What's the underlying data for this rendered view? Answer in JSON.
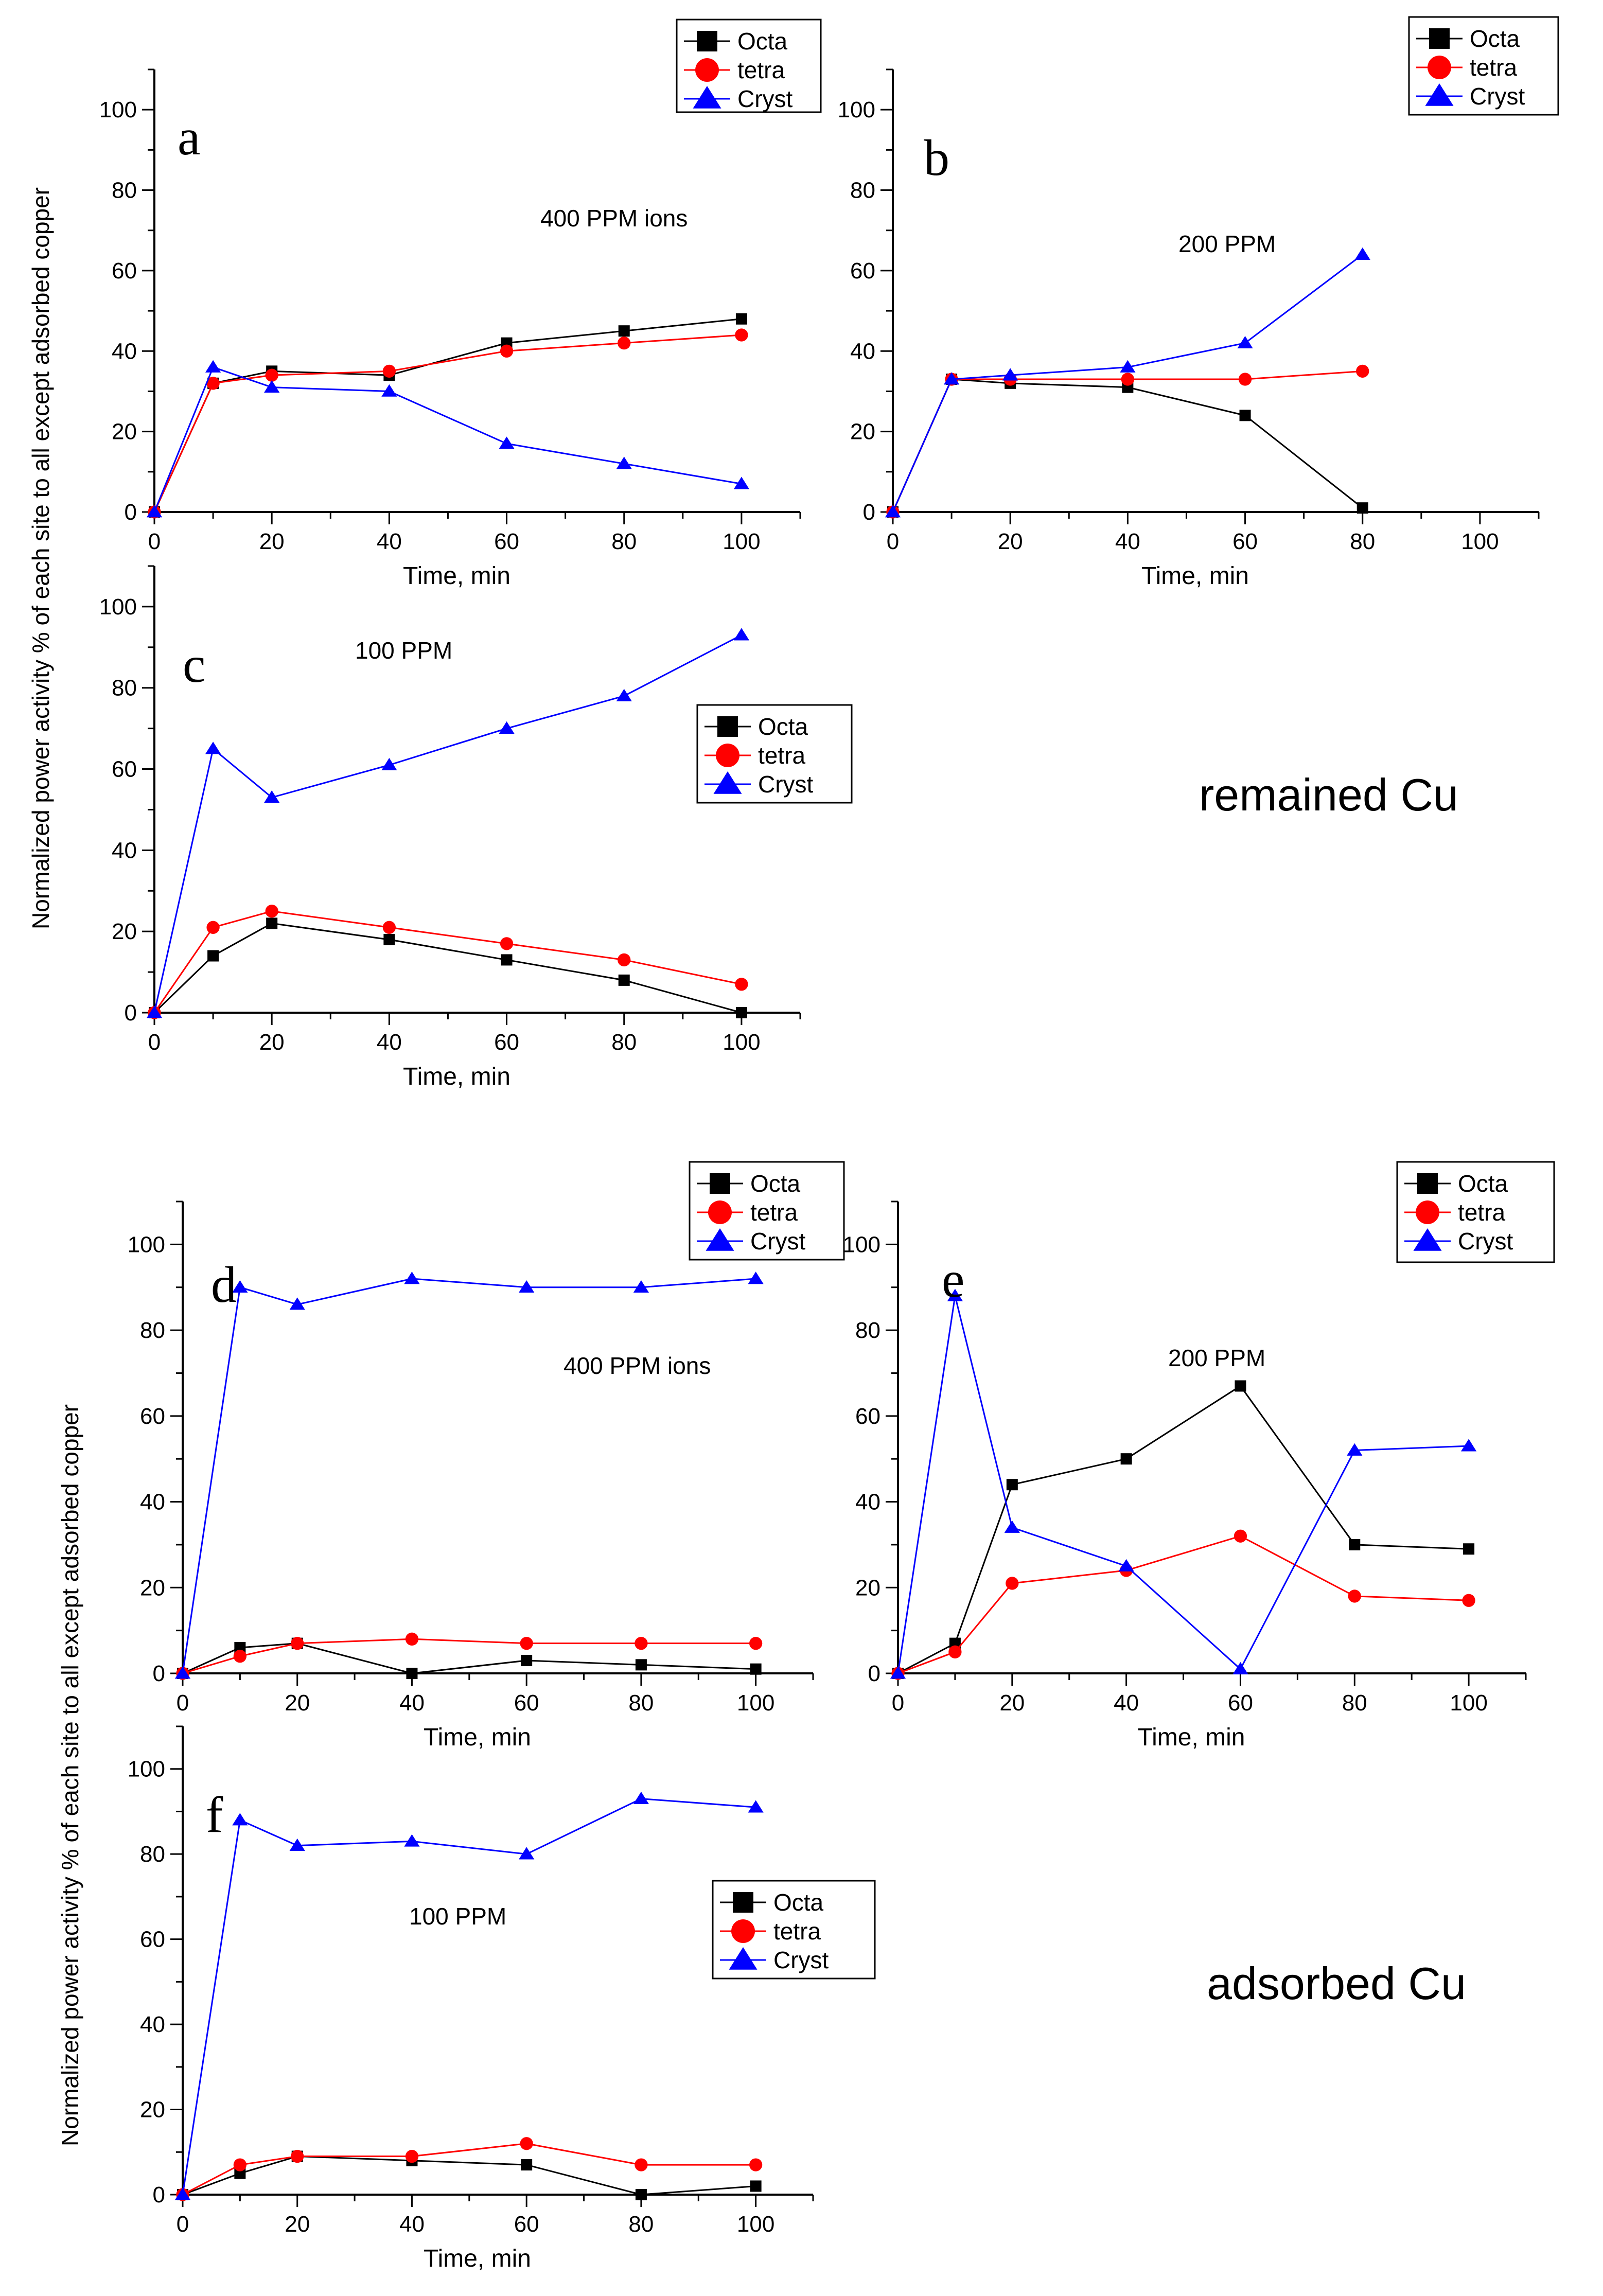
{
  "figure": {
    "y_axis_label": "Normalized power activity  % of  each site to all except adsorbed copper",
    "group_labels": [
      "remained Cu",
      "adsorbed Cu"
    ]
  },
  "colors": {
    "Octa": "#000000",
    "tetra": "#ff0000",
    "Cryst": "#0000ff"
  },
  "chart_data": [
    {
      "type": "line",
      "panel": "a",
      "annotation": "400 PPM ions",
      "xlabel": "Time, min",
      "ylabel": "",
      "xlim": [
        0,
        110
      ],
      "ylim": [
        0,
        110
      ],
      "xticks": [
        0,
        20,
        40,
        60,
        80,
        100
      ],
      "yticks": [
        0,
        20,
        40,
        60,
        80,
        100
      ],
      "legend": "top-right",
      "series": [
        {
          "name": "Octa",
          "x": [
            0,
            10,
            20,
            40,
            60,
            80,
            100
          ],
          "y": [
            0,
            32,
            35,
            34,
            42,
            45,
            48
          ]
        },
        {
          "name": "tetra",
          "x": [
            0,
            10,
            20,
            40,
            60,
            80,
            100
          ],
          "y": [
            0,
            32,
            34,
            35,
            40,
            42,
            44
          ]
        },
        {
          "name": "Cryst",
          "x": [
            0,
            10,
            20,
            40,
            60,
            80,
            100
          ],
          "y": [
            0,
            36,
            31,
            30,
            17,
            12,
            7
          ]
        }
      ]
    },
    {
      "type": "line",
      "panel": "b",
      "annotation": "200 PPM",
      "xlabel": "Time, min",
      "ylabel": "",
      "xlim": [
        0,
        110
      ],
      "ylim": [
        0,
        110
      ],
      "xticks": [
        0,
        20,
        40,
        60,
        80,
        100
      ],
      "yticks": [
        0,
        20,
        40,
        60,
        80,
        100
      ],
      "legend": "top-right",
      "series": [
        {
          "name": "Octa",
          "x": [
            0,
            10,
            20,
            40,
            60,
            80
          ],
          "y": [
            0,
            33,
            32,
            31,
            24,
            1
          ]
        },
        {
          "name": "tetra",
          "x": [
            0,
            10,
            20,
            40,
            60,
            80
          ],
          "y": [
            0,
            33,
            33,
            33,
            33,
            35
          ]
        },
        {
          "name": "Cryst",
          "x": [
            0,
            10,
            20,
            40,
            60,
            80
          ],
          "y": [
            0,
            33,
            34,
            36,
            42,
            64
          ]
        }
      ]
    },
    {
      "type": "line",
      "panel": "c",
      "annotation": "100 PPM",
      "xlabel": "Time, min",
      "ylabel": "",
      "xlim": [
        0,
        110
      ],
      "ylim": [
        0,
        110
      ],
      "xticks": [
        0,
        20,
        40,
        60,
        80,
        100
      ],
      "yticks": [
        0,
        20,
        40,
        60,
        80,
        100
      ],
      "legend": "right",
      "series": [
        {
          "name": "Octa",
          "x": [
            0,
            10,
            20,
            40,
            60,
            80,
            100
          ],
          "y": [
            0,
            14,
            22,
            18,
            13,
            8,
            0
          ]
        },
        {
          "name": "tetra",
          "x": [
            0,
            10,
            20,
            40,
            60,
            80,
            100
          ],
          "y": [
            0,
            21,
            25,
            21,
            17,
            13,
            7
          ]
        },
        {
          "name": "Cryst",
          "x": [
            0,
            10,
            20,
            40,
            60,
            80,
            100
          ],
          "y": [
            0,
            65,
            53,
            61,
            70,
            78,
            93
          ]
        }
      ]
    },
    {
      "type": "line",
      "panel": "d",
      "annotation": "400 PPM ions",
      "xlabel": "Time, min",
      "ylabel": "",
      "xlim": [
        0,
        110
      ],
      "ylim": [
        0,
        110
      ],
      "xticks": [
        0,
        20,
        40,
        60,
        80,
        100
      ],
      "yticks": [
        0,
        20,
        40,
        60,
        80,
        100
      ],
      "legend": "top-right",
      "series": [
        {
          "name": "Octa",
          "x": [
            0,
            10,
            20,
            40,
            60,
            80,
            100
          ],
          "y": [
            0,
            6,
            7,
            0,
            3,
            2,
            1
          ]
        },
        {
          "name": "tetra",
          "x": [
            0,
            10,
            20,
            40,
            60,
            80,
            100
          ],
          "y": [
            0,
            4,
            7,
            8,
            7,
            7,
            7
          ]
        },
        {
          "name": "Cryst",
          "x": [
            0,
            10,
            20,
            40,
            60,
            80,
            100
          ],
          "y": [
            0,
            90,
            86,
            92,
            90,
            90,
            92
          ]
        }
      ]
    },
    {
      "type": "line",
      "panel": "e",
      "annotation": "200 PPM",
      "xlabel": "Time, min",
      "ylabel": "",
      "xlim": [
        0,
        110
      ],
      "ylim": [
        0,
        110
      ],
      "xticks": [
        0,
        20,
        40,
        60,
        80,
        100
      ],
      "yticks": [
        0,
        20,
        40,
        60,
        80,
        100
      ],
      "legend": "top-right",
      "series": [
        {
          "name": "Octa",
          "x": [
            0,
            10,
            20,
            40,
            60,
            80,
            100
          ],
          "y": [
            0,
            7,
            44,
            50,
            67,
            30,
            29
          ]
        },
        {
          "name": "tetra",
          "x": [
            0,
            10,
            20,
            40,
            60,
            80,
            100
          ],
          "y": [
            0,
            5,
            21,
            24,
            32,
            18,
            17
          ]
        },
        {
          "name": "Cryst",
          "x": [
            0,
            10,
            20,
            40,
            60,
            80,
            100
          ],
          "y": [
            0,
            88,
            34,
            25,
            1,
            52,
            53
          ]
        }
      ]
    },
    {
      "type": "line",
      "panel": "f",
      "annotation": "100 PPM",
      "xlabel": "Time, min",
      "ylabel": "",
      "xlim": [
        0,
        110
      ],
      "ylim": [
        0,
        110
      ],
      "xticks": [
        0,
        20,
        40,
        60,
        80,
        100
      ],
      "yticks": [
        0,
        20,
        40,
        60,
        80,
        100
      ],
      "legend": "right",
      "series": [
        {
          "name": "Octa",
          "x": [
            0,
            10,
            20,
            40,
            60,
            80,
            100
          ],
          "y": [
            0,
            5,
            9,
            8,
            7,
            0,
            2
          ]
        },
        {
          "name": "tetra",
          "x": [
            0,
            10,
            20,
            40,
            60,
            80,
            100
          ],
          "y": [
            0,
            7,
            9,
            9,
            12,
            7,
            7
          ]
        },
        {
          "name": "Cryst",
          "x": [
            0,
            10,
            20,
            40,
            60,
            80,
            100
          ],
          "y": [
            0,
            88,
            82,
            83,
            80,
            93,
            91
          ]
        }
      ]
    }
  ]
}
